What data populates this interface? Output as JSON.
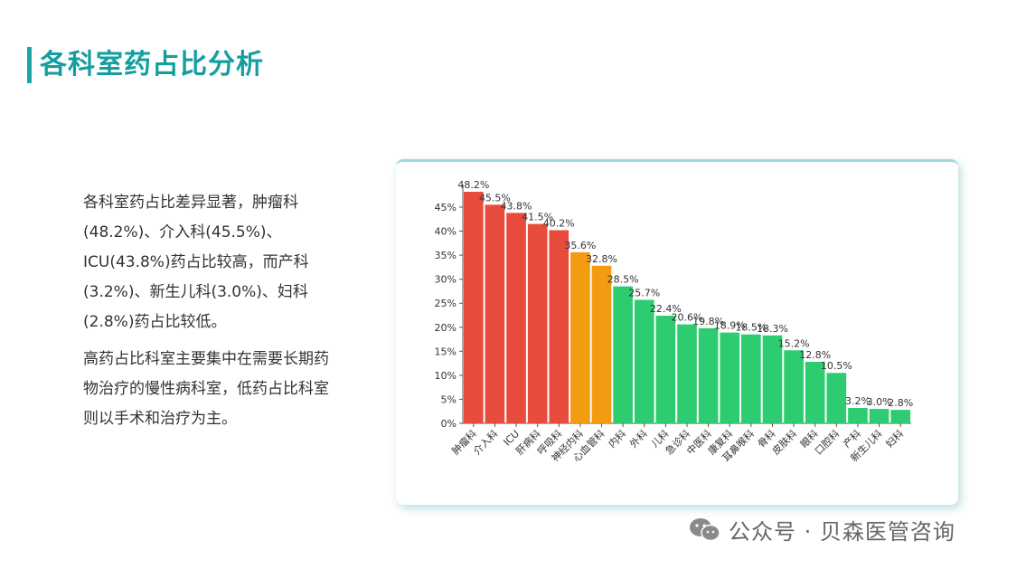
{
  "page": {
    "title": "各科室药占比分析",
    "paragraphs": [
      "各科室药占比差异显著，肿瘤科(48.2%)、介入科(45.5%)、ICU(43.8%)药占比较高，而产科(3.2%)、新生儿科(3.0%)、妇科(2.8%)药占比较低。",
      "高药占比科室主要集中在需要长期药物治疗的慢性病科室，低药占比科室则以手术和治疗为主。"
    ],
    "watermark": "公众号 · 贝森医管咨询"
  },
  "colors": {
    "accent": "#149ea0",
    "high": "#e84c3d",
    "mid": "#f39c12",
    "low": "#2ecc71"
  },
  "chart_data": {
    "type": "bar",
    "categories": [
      "肿瘤科",
      "介入科",
      "ICU",
      "肝病科",
      "呼吸科",
      "神经内科",
      "心血管科",
      "内科",
      "外科",
      "儿科",
      "急诊科",
      "中医科",
      "康复科",
      "耳鼻喉科",
      "骨科",
      "皮肤科",
      "眼科",
      "口腔科",
      "产科",
      "新生儿科",
      "妇科"
    ],
    "values": [
      48.2,
      45.5,
      43.8,
      41.5,
      40.2,
      35.6,
      32.8,
      28.5,
      25.7,
      22.4,
      20.6,
      19.8,
      18.9,
      18.5,
      18.3,
      15.2,
      12.8,
      10.5,
      3.2,
      3.0,
      2.8
    ],
    "value_labels": [
      "48.2%",
      "45.5%",
      "43.8%",
      "41.5%",
      "40.2%",
      "35.6%",
      "32.8%",
      "28.5%",
      "25.7%",
      "22.4%",
      "20.6%",
      "19.8%",
      "18.9%",
      "18.5%",
      "18.3%",
      "15.2%",
      "12.8%",
      "10.5%",
      "3.2%",
      "3.0%",
      "2.8%"
    ],
    "bar_colors": [
      "#e84c3d",
      "#e84c3d",
      "#e84c3d",
      "#e84c3d",
      "#e84c3d",
      "#f39c12",
      "#f39c12",
      "#2ecc71",
      "#2ecc71",
      "#2ecc71",
      "#2ecc71",
      "#2ecc71",
      "#2ecc71",
      "#2ecc71",
      "#2ecc71",
      "#2ecc71",
      "#2ecc71",
      "#2ecc71",
      "#2ecc71",
      "#2ecc71",
      "#2ecc71"
    ],
    "yticks": [
      0,
      5,
      10,
      15,
      20,
      25,
      30,
      35,
      40,
      45
    ],
    "ytick_labels": [
      "0%",
      "5%",
      "10%",
      "15%",
      "20%",
      "25%",
      "30%",
      "35%",
      "40%",
      "45%"
    ],
    "ylim": [
      0,
      48.2
    ],
    "title": "",
    "xlabel": "",
    "ylabel": "",
    "grid": false,
    "legend": false
  }
}
